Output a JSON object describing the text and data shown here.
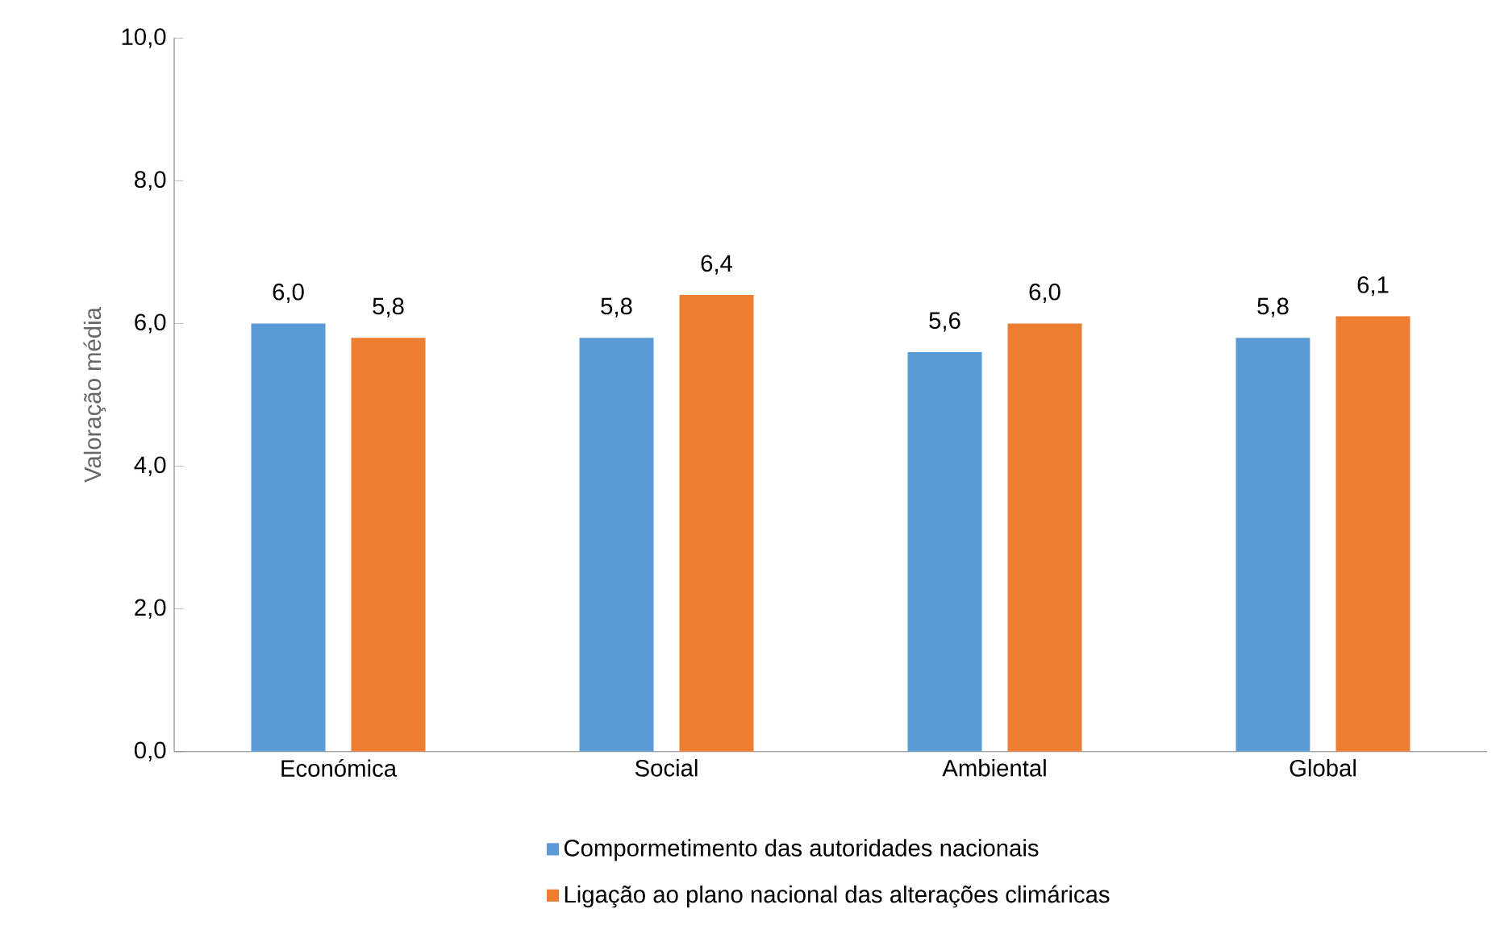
{
  "chart_data": {
    "type": "bar",
    "ylabel": "Valoração média",
    "categories": [
      "Económica",
      "Social",
      "Ambiental",
      "Global"
    ],
    "series": [
      {
        "name": "Compormetimento das autoridades nacionais",
        "color": "#5b9bd5",
        "values": [
          6.0,
          5.8,
          5.6,
          5.8
        ],
        "value_labels": [
          "6,0",
          "5,8",
          "5,6",
          "5,8"
        ]
      },
      {
        "name": "Ligação ao plano nacional das alterações climáricas",
        "color": "#ed7d31",
        "values": [
          5.8,
          6.4,
          6.0,
          6.1
        ],
        "value_labels": [
          "5,8",
          "6,4",
          "6,0",
          "6,1"
        ]
      }
    ],
    "ylim": [
      0,
      10
    ],
    "yticks": [
      {
        "value": 0,
        "label": "0,0"
      },
      {
        "value": 2,
        "label": "2,0"
      },
      {
        "value": 4,
        "label": "4,0"
      },
      {
        "value": 6,
        "label": "6,0"
      },
      {
        "value": 8,
        "label": "8,0"
      },
      {
        "value": 10,
        "label": "10,0"
      }
    ],
    "grid": false,
    "legend": "bottom"
  }
}
